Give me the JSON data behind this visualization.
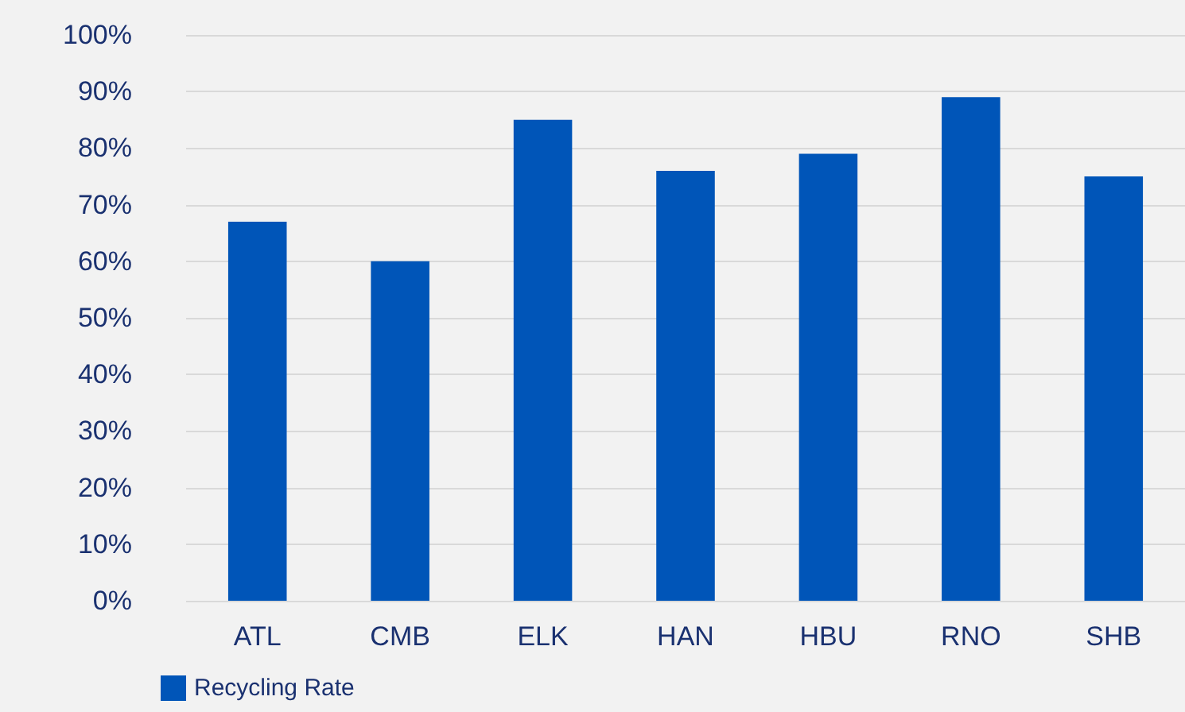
{
  "chart_data": {
    "type": "bar",
    "categories": [
      "ATL",
      "CMB",
      "ELK",
      "HAN",
      "HBU",
      "RNO",
      "SHB"
    ],
    "series": [
      {
        "name": "Recycling Rate",
        "color": "#0055b8",
        "values": [
          67,
          60,
          85,
          76,
          79,
          89,
          75
        ]
      }
    ],
    "ylim": [
      0,
      100
    ],
    "yticks": [
      {
        "value": 0,
        "label": "0%"
      },
      {
        "value": 10,
        "label": "10%"
      },
      {
        "value": 20,
        "label": "20%"
      },
      {
        "value": 30,
        "label": "30%"
      },
      {
        "value": 40,
        "label": "40%"
      },
      {
        "value": 50,
        "label": "50%"
      },
      {
        "value": 60,
        "label": "60%"
      },
      {
        "value": 70,
        "label": "70%"
      },
      {
        "value": 80,
        "label": "80%"
      },
      {
        "value": 90,
        "label": "90%"
      },
      {
        "value": 100,
        "label": "100%"
      }
    ],
    "grid": "y",
    "legend": "bottom left"
  }
}
